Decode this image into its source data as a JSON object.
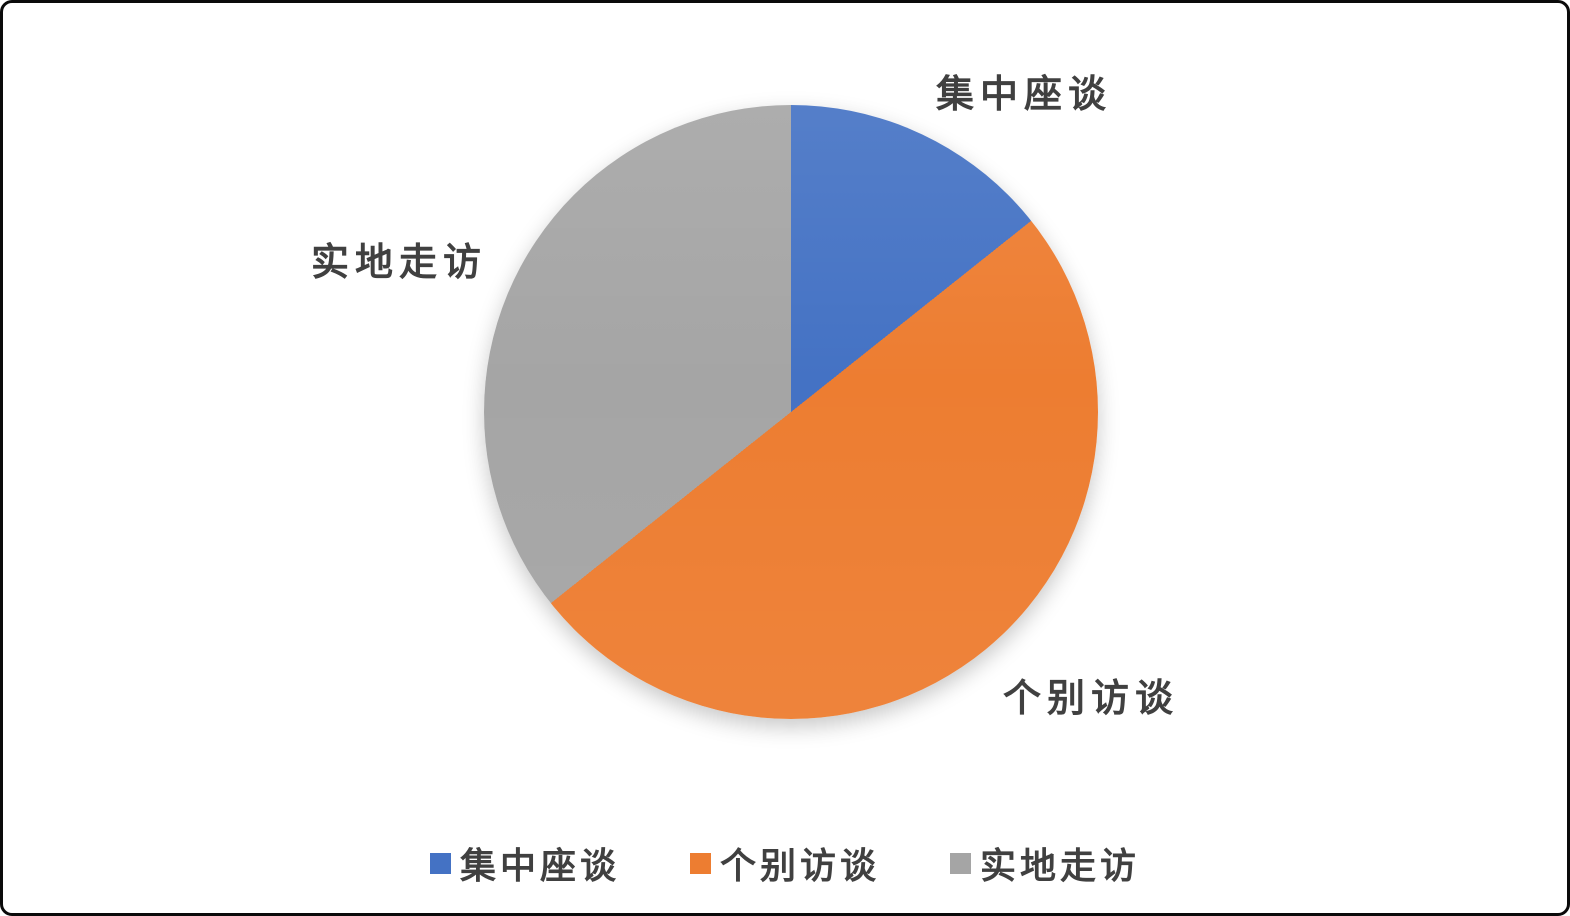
{
  "frame": {
    "background": "#ffffff",
    "border_color": "#0a0a0a"
  },
  "chart_data": {
    "type": "pie",
    "title": "",
    "categories": [
      "集中座谈",
      "个别访谈",
      "实地走访"
    ],
    "values": [
      14.3,
      50.0,
      35.7
    ],
    "colors": [
      "#4472C4",
      "#ED7D31",
      "#A5A5A5"
    ],
    "start_angle_deg": 0,
    "slice_angles_deg": [
      51.4,
      180.0,
      128.6
    ],
    "data_labels": "category names placed outside slices",
    "label_color": "#404040",
    "legend_position": "bottom",
    "legend_entries": [
      "集中座谈",
      "个别访谈",
      "实地走访"
    ]
  }
}
